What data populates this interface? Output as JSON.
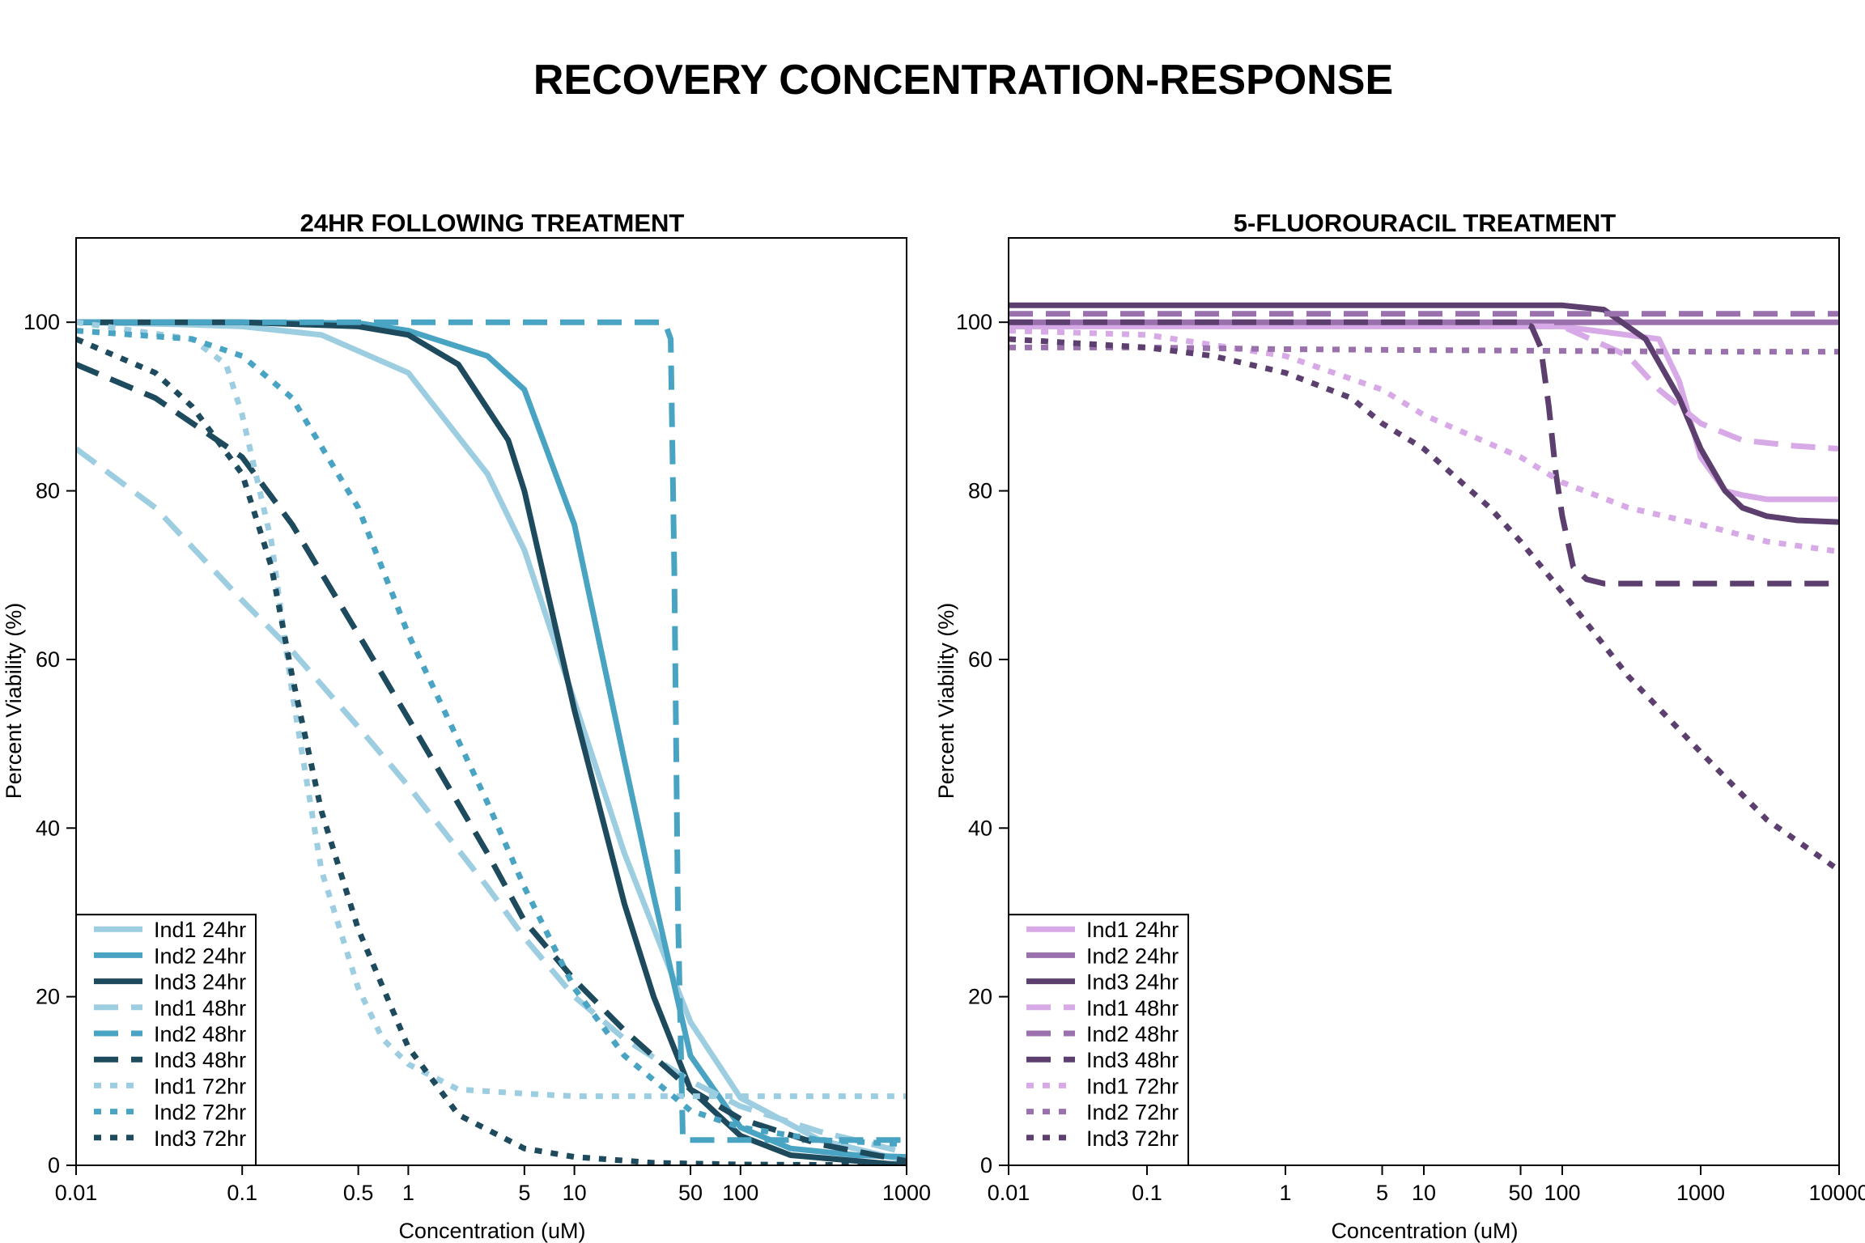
{
  "title": "RECOVERY CONCENTRATION-RESPONSE",
  "chart_data": [
    {
      "type": "line",
      "title": "24HR FOLLOWING TREATMENT",
      "xlabel": "Concentration (uM)",
      "ylabel": "Percent Viability (%)",
      "x_scale": "log10",
      "xlim": [
        0.01,
        1000
      ],
      "ylim": [
        0,
        110
      ],
      "x_ticks": [
        0.01,
        0.1,
        0.5,
        1,
        5,
        10,
        50,
        100,
        1000
      ],
      "x_tick_labels": [
        "0.01",
        "0.1",
        "0.5",
        "1",
        "5",
        "10",
        "50",
        "100",
        "1000"
      ],
      "y_ticks": [
        0,
        20,
        40,
        60,
        80,
        100
      ],
      "y_tick_labels": [
        "0",
        "20",
        "40",
        "60",
        "80",
        "100"
      ],
      "grid": false,
      "legend_position": "bottom-left",
      "series": [
        {
          "name": "Ind1 24hr",
          "color": "#9ccde0",
          "dash": "solid",
          "x": [
            0.01,
            0.05,
            0.1,
            0.3,
            1,
            3,
            5,
            10,
            20,
            50,
            100,
            300,
            1000
          ],
          "y": [
            100,
            99.7,
            99.5,
            98.5,
            94,
            82,
            73,
            55,
            37,
            17,
            8,
            3,
            0.5
          ]
        },
        {
          "name": "Ind2 24hr",
          "color": "#49a3c2",
          "dash": "solid",
          "x": [
            0.01,
            0.1,
            0.5,
            1,
            3,
            5,
            10,
            20,
            30,
            50,
            100,
            200,
            500,
            1000
          ],
          "y": [
            100,
            100,
            99.9,
            99,
            96,
            92,
            76,
            48,
            32,
            13,
            4.5,
            2,
            1.2,
            1
          ]
        },
        {
          "name": "Ind3 24hr",
          "color": "#1d4a5c",
          "dash": "solid",
          "x": [
            0.01,
            0.1,
            0.5,
            1,
            2,
            4,
            5,
            10,
            20,
            30,
            50,
            100,
            200,
            1000
          ],
          "y": [
            100,
            100,
            99.5,
            98.5,
            95,
            86,
            80,
            54,
            31,
            20,
            9,
            3.5,
            1.2,
            0
          ]
        },
        {
          "name": "Ind1 48hr",
          "color": "#9ccde0",
          "dash": "dashed",
          "x": [
            0.01,
            0.03,
            0.1,
            0.2,
            0.5,
            1,
            3,
            5,
            10,
            20,
            50,
            100,
            300,
            1000
          ],
          "y": [
            85,
            78,
            67,
            61,
            52,
            45,
            33,
            27,
            20,
            15,
            10,
            7,
            4,
            1.5
          ]
        },
        {
          "name": "Ind2 48hr",
          "color": "#49a3c2",
          "dash": "dashed",
          "x": [
            0.01,
            0.5,
            5,
            35,
            38,
            40,
            42,
            45,
            50,
            100,
            1000
          ],
          "y": [
            100,
            100,
            100,
            100,
            98,
            70,
            30,
            3,
            3,
            3,
            3
          ]
        },
        {
          "name": "Ind3 48hr",
          "color": "#1d4a5c",
          "dash": "dashed",
          "x": [
            0.01,
            0.03,
            0.1,
            0.2,
            0.5,
            1,
            3,
            5,
            10,
            20,
            50,
            100,
            300,
            1000
          ],
          "y": [
            95,
            91,
            84,
            76,
            63,
            53,
            37,
            29,
            22,
            16,
            9,
            5.5,
            2.5,
            0.5
          ]
        },
        {
          "name": "Ind1 72hr",
          "color": "#9ccde0",
          "dash": "dotted",
          "x": [
            0.01,
            0.05,
            0.08,
            0.1,
            0.15,
            0.2,
            0.3,
            0.5,
            0.7,
            1,
            2,
            5,
            10,
            100,
            1000
          ],
          "y": [
            100,
            98,
            95,
            89,
            74,
            56,
            35,
            21,
            15,
            12,
            9,
            8.5,
            8.2,
            8.2,
            8.2
          ]
        },
        {
          "name": "Ind2 72hr",
          "color": "#49a3c2",
          "dash": "dotted",
          "x": [
            0.01,
            0.05,
            0.1,
            0.2,
            0.5,
            1,
            3,
            5,
            10,
            20,
            50,
            100,
            300,
            1000
          ],
          "y": [
            99,
            98,
            96,
            91,
            78,
            63,
            43,
            33,
            21,
            13,
            6.5,
            4.5,
            3,
            2.5
          ]
        },
        {
          "name": "Ind3 72hr",
          "color": "#1d4a5c",
          "dash": "dotted",
          "x": [
            0.01,
            0.03,
            0.05,
            0.1,
            0.15,
            0.2,
            0.3,
            0.5,
            1,
            2,
            5,
            10,
            30,
            100,
            1000
          ],
          "y": [
            98,
            94,
            90,
            82,
            71,
            58,
            42,
            28,
            14,
            6,
            2,
            1,
            0.3,
            0.1,
            0
          ]
        }
      ]
    },
    {
      "type": "line",
      "title": "5-FLUOROURACIL TREATMENT",
      "xlabel": "Concentration (uM)",
      "ylabel": "Percent Viability (%)",
      "x_scale": "log10",
      "xlim": [
        0.01,
        10000
      ],
      "ylim": [
        0,
        110
      ],
      "x_ticks": [
        0.01,
        0.1,
        1,
        5,
        10,
        50,
        100,
        1000,
        10000
      ],
      "x_tick_labels": [
        "0.01",
        "0.1",
        "1",
        "5",
        "10",
        "50",
        "100",
        "1000",
        "10000"
      ],
      "y_ticks": [
        0,
        20,
        40,
        60,
        80,
        100
      ],
      "y_tick_labels": [
        "0",
        "20",
        "40",
        "60",
        "80",
        "100"
      ],
      "grid": false,
      "legend_position": "bottom-left",
      "series": [
        {
          "name": "Ind1 24hr",
          "color": "#d7a9e6",
          "dash": "solid",
          "x": [
            0.01,
            100,
            500,
            700,
            1000,
            1500,
            2000,
            3000,
            10000
          ],
          "y": [
            99.5,
            99.5,
            98,
            93,
            84,
            80,
            79.5,
            79,
            79
          ]
        },
        {
          "name": "Ind2 24hr",
          "color": "#9a70ad",
          "dash": "solid",
          "x": [
            0.01,
            10000
          ],
          "y": [
            100,
            100
          ]
        },
        {
          "name": "Ind3 24hr",
          "color": "#5c3f6e",
          "dash": "solid",
          "x": [
            0.01,
            100,
            200,
            400,
            700,
            1000,
            1500,
            2000,
            3000,
            5000,
            10000
          ],
          "y": [
            102,
            102,
            101.5,
            98,
            91,
            85,
            80,
            78,
            77,
            76.5,
            76.3
          ]
        },
        {
          "name": "Ind1 48hr",
          "color": "#d7a9e6",
          "dash": "dashed",
          "x": [
            0.01,
            100,
            300,
            500,
            1000,
            2000,
            5000,
            10000
          ],
          "y": [
            100,
            99.5,
            96,
            92,
            88,
            86,
            85.3,
            85
          ]
        },
        {
          "name": "Ind2 48hr",
          "color": "#9a70ad",
          "dash": "dashed",
          "x": [
            0.01,
            10000
          ],
          "y": [
            101,
            101
          ]
        },
        {
          "name": "Ind3 48hr",
          "color": "#5c3f6e",
          "dash": "dashed",
          "x": [
            0.01,
            50,
            60,
            70,
            80,
            90,
            100,
            120,
            150,
            200,
            10000
          ],
          "y": [
            100,
            100,
            99.5,
            97,
            90,
            82,
            77,
            71,
            69.5,
            69,
            69
          ]
        },
        {
          "name": "Ind1 72hr",
          "color": "#d7a9e6",
          "dash": "dotted",
          "x": [
            0.01,
            0.1,
            1,
            5,
            10,
            50,
            100,
            300,
            1000,
            3000,
            10000
          ],
          "y": [
            99,
            98.5,
            96,
            92,
            89,
            84,
            81,
            78,
            76,
            74,
            72.8
          ]
        },
        {
          "name": "Ind2 72hr",
          "color": "#9a70ad",
          "dash": "dotted",
          "x": [
            0.01,
            0.1,
            1,
            10,
            100,
            1000,
            10000
          ],
          "y": [
            97,
            97,
            96.8,
            96.7,
            96.6,
            96.5,
            96.5
          ]
        },
        {
          "name": "Ind3 72hr",
          "color": "#5c3f6e",
          "dash": "dotted",
          "x": [
            0.01,
            0.1,
            0.3,
            1,
            3,
            5,
            10,
            30,
            50,
            100,
            300,
            1000,
            3000,
            10000
          ],
          "y": [
            98,
            97,
            96,
            94,
            91,
            88,
            85,
            78,
            74,
            68,
            58,
            49,
            41,
            35
          ]
        }
      ]
    }
  ]
}
